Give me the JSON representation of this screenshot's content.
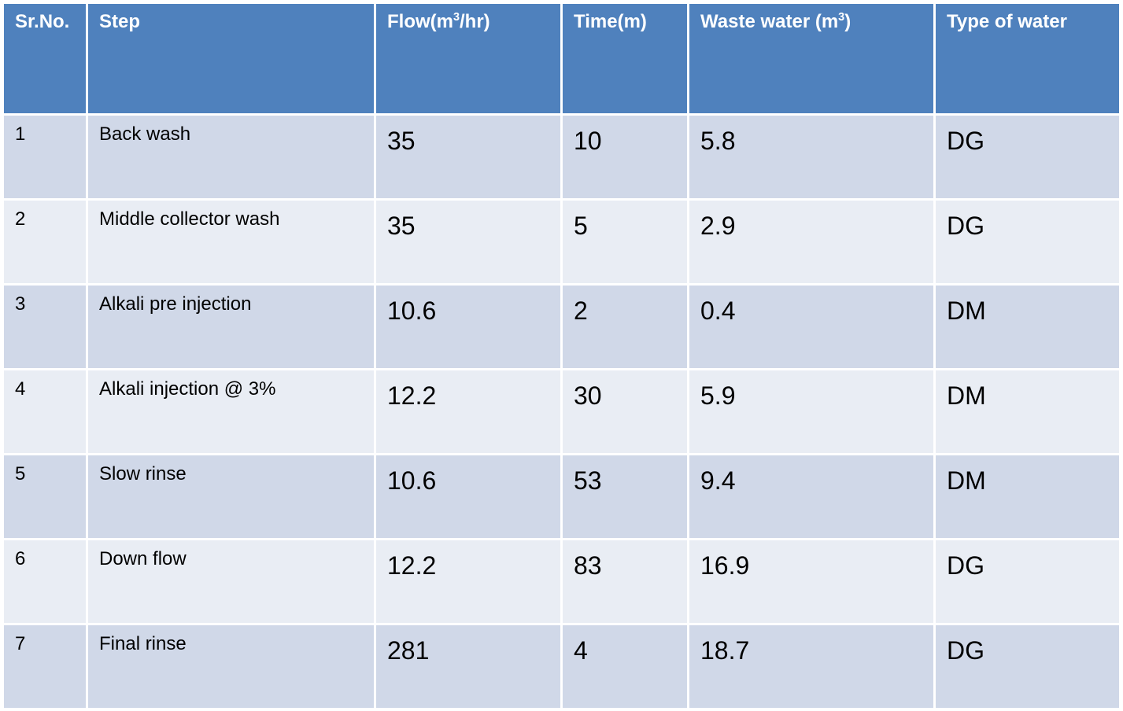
{
  "headers": {
    "srno": "Sr.No.",
    "step": "Step",
    "flow_prefix": "Flow(m",
    "flow_sup": "3",
    "flow_suffix": "/hr)",
    "time": "Time(m)",
    "waste_prefix": "Waste water (m",
    "waste_sup": "3",
    "waste_suffix": ")",
    "type": "Type of water"
  },
  "rows": [
    {
      "srno": "1",
      "step": "Back wash",
      "flow": "35",
      "time": "10",
      "waste": "5.8",
      "type": "DG"
    },
    {
      "srno": "2",
      "step": "Middle collector wash",
      "flow": "35",
      "time": "5",
      "waste": "2.9",
      "type": "DG"
    },
    {
      "srno": "3",
      "step": "Alkali pre injection",
      "flow": "10.6",
      "time": "2",
      "waste": "0.4",
      "type": "DM"
    },
    {
      "srno": "4",
      "step": "Alkali injection @ 3%",
      "flow": "12.2",
      "time": "30",
      "waste": "5.9",
      "type": "DM"
    },
    {
      "srno": "5",
      "step": "Slow rinse",
      "flow": "10.6",
      "time": "53",
      "waste": "9.4",
      "type": "DM"
    },
    {
      "srno": "6",
      "step": "Down flow",
      "flow": "12.2",
      "time": "83",
      "waste": "16.9",
      "type": "DG"
    },
    {
      "srno": "7",
      "step": "Final rinse",
      "flow": "281",
      "time": "4",
      "waste": "18.7",
      "type": "DG"
    }
  ],
  "colors": {
    "header_bg": "#4f81bd",
    "row_odd_bg": "#d0d8e8",
    "row_even_bg": "#e9edf4"
  }
}
